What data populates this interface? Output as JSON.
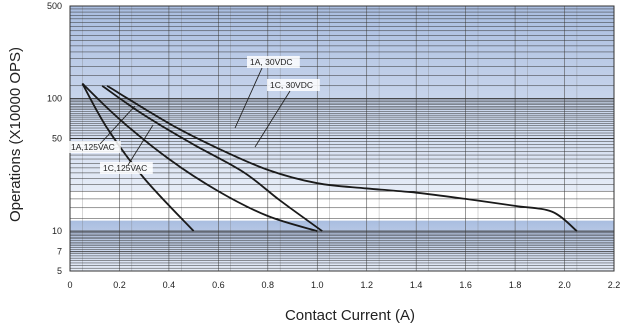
{
  "chart_data": {
    "type": "line",
    "title": "",
    "xlabel": "Contact Current (A)",
    "ylabel": "Operations (X10000 OPS)",
    "xlim": [
      0,
      2.2
    ],
    "ylim": [
      5,
      500
    ],
    "yscale": "log",
    "x_ticks": [
      "0",
      "0.2",
      "0.4",
      "0.6",
      "0.8",
      "1.0",
      "1.2",
      "1.4",
      "1.6",
      "1.8",
      "2.0",
      "2.2"
    ],
    "y_ticks": [
      "500",
      "100",
      "50",
      "10",
      "7",
      "5"
    ],
    "grid": true,
    "colors": {
      "band_dark": "#a9bde0",
      "band_light": "#e6ecf7",
      "line": "#1a1a1a"
    },
    "annotations": [
      "1A, 30VDC",
      "1C, 30VDC",
      "1A,125VAC",
      "1C,125VAC"
    ],
    "series": [
      {
        "x": [
          0.05,
          0.15,
          0.3,
          0.5
        ],
        "y": [
          130,
          60,
          25,
          10
        ]
      },
      {
        "x": [
          0.05,
          0.2,
          0.4,
          0.6,
          0.8,
          1.0
        ],
        "y": [
          130,
          70,
          35,
          20,
          13,
          10
        ]
      },
      {
        "x": [
          0.13,
          0.3,
          0.5,
          0.7,
          0.85,
          1.02
        ],
        "y": [
          125,
          75,
          45,
          28,
          17,
          10
        ]
      },
      {
        "x": [
          0.15,
          0.4,
          0.6,
          0.8,
          1.0,
          1.2,
          1.4,
          1.6,
          1.8,
          1.95,
          2.05
        ],
        "y": [
          125,
          65,
          42,
          29,
          23,
          21,
          19.5,
          17.5,
          15.5,
          14,
          10
        ]
      }
    ]
  }
}
